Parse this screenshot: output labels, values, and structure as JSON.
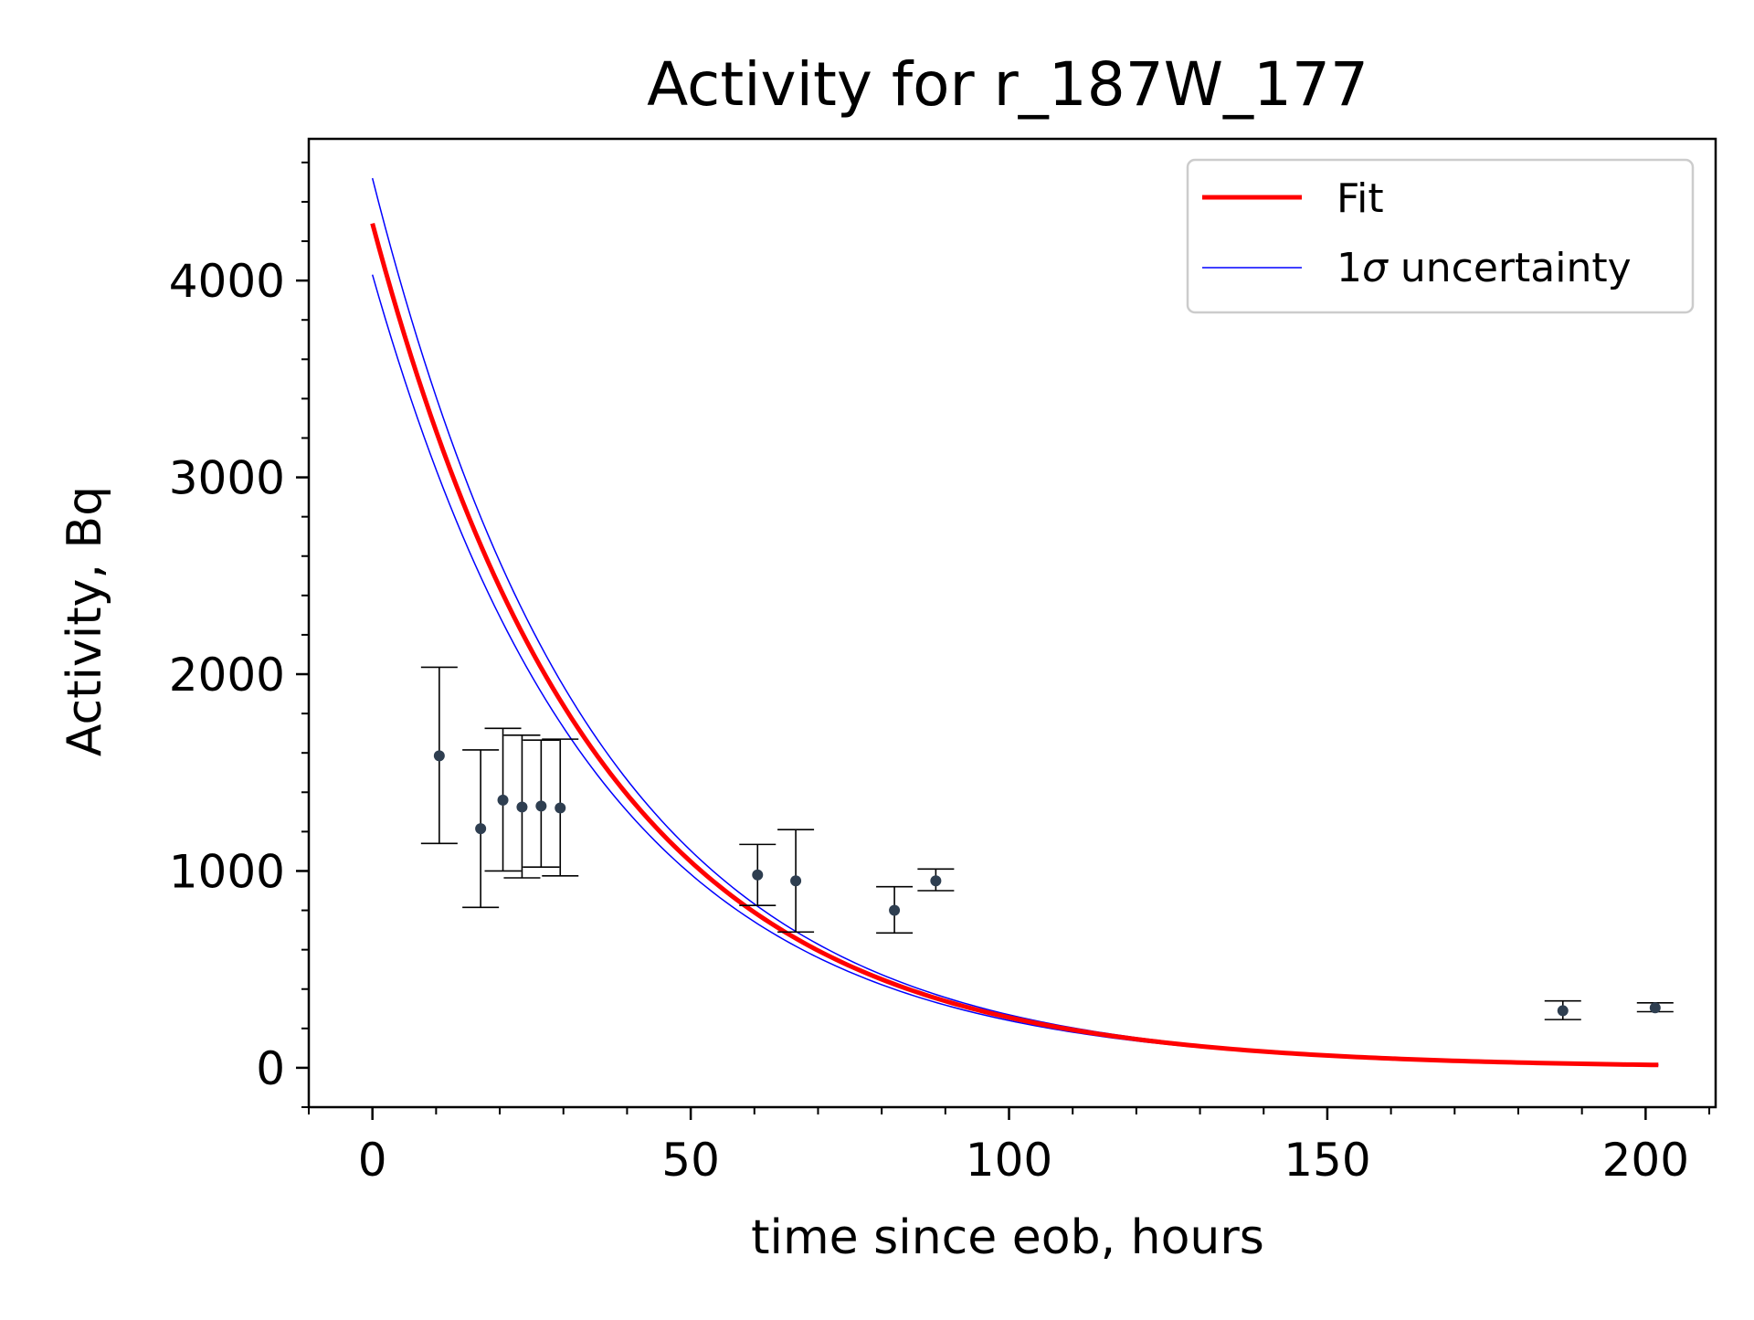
{
  "chart_data": {
    "type": "scatter",
    "title": "Activity for r_187W_177",
    "xlabel": "time since eob, hours",
    "ylabel": "Activity, Bq",
    "xlim": [
      -10,
      211
    ],
    "ylim": [
      -200,
      4720
    ],
    "xticks": [
      0,
      50,
      100,
      150,
      200
    ],
    "yticks": [
      0,
      1000,
      2000,
      3000,
      4000
    ],
    "x_tick_labels": [
      "0",
      "50",
      "100",
      "150",
      "200"
    ],
    "y_tick_labels": [
      "0",
      "1000",
      "2000",
      "3000",
      "4000"
    ],
    "grid": false,
    "legend": {
      "placement": "top-right",
      "entries": [
        {
          "label": "Fit",
          "color": "#ff0000"
        },
        {
          "label": "1σ uncertainty",
          "label_prefix": "1",
          "label_symbol": "σ",
          "label_suffix": " uncertainty",
          "color": "#0000ff"
        }
      ]
    },
    "fit": {
      "model": "exponential decay",
      "A0": 4290,
      "decay_constant_per_hour": 0.0282,
      "x_range": [
        0,
        202
      ],
      "upper_A0": 4520,
      "lower_A0": 4030,
      "color": "#ff0000",
      "band_color": "#0000ff"
    },
    "series": [
      {
        "marker_color": "#2e3e50",
        "points": [
          {
            "x": 10.5,
            "y": 1585,
            "yerr_low": 1140,
            "yerr_high": 2035
          },
          {
            "x": 17,
            "y": 1215,
            "yerr_low": 815,
            "yerr_high": 1615
          },
          {
            "x": 20.5,
            "y": 1360,
            "yerr_low": 1000,
            "yerr_high": 1725
          },
          {
            "x": 23.5,
            "y": 1325,
            "yerr_low": 965,
            "yerr_high": 1690
          },
          {
            "x": 26.5,
            "y": 1330,
            "yerr_low": 1020,
            "yerr_high": 1665
          },
          {
            "x": 29.5,
            "y": 1320,
            "yerr_low": 975,
            "yerr_high": 1670
          },
          {
            "x": 60.5,
            "y": 980,
            "yerr_low": 825,
            "yerr_high": 1135
          },
          {
            "x": 66.5,
            "y": 950,
            "yerr_low": 690,
            "yerr_high": 1210
          },
          {
            "x": 82,
            "y": 800,
            "yerr_low": 685,
            "yerr_high": 920
          },
          {
            "x": 88.5,
            "y": 950,
            "yerr_low": 900,
            "yerr_high": 1010
          },
          {
            "x": 187,
            "y": 290,
            "yerr_low": 245,
            "yerr_high": 340
          },
          {
            "x": 201.5,
            "y": 305,
            "yerr_low": 285,
            "yerr_high": 330
          }
        ]
      }
    ]
  }
}
